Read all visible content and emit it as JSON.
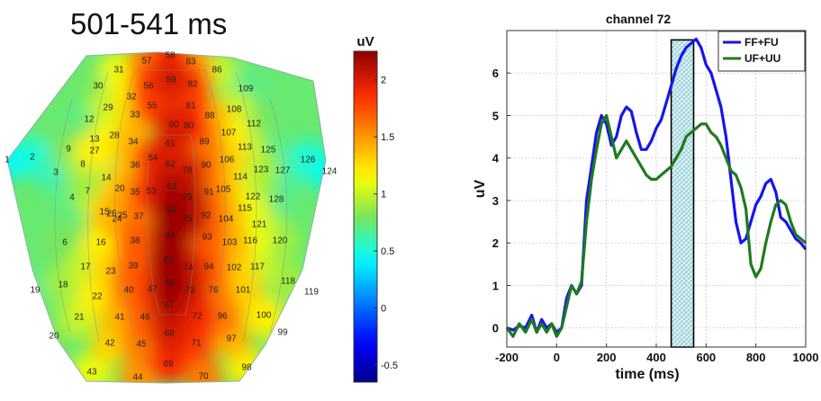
{
  "chart_data": [
    {
      "type": "heatmap",
      "title": "501-541 ms",
      "colorbar": {
        "label": "uV",
        "range": [
          -0.65,
          2.25
        ],
        "ticks": [
          "2",
          "1.5",
          "1",
          "0.5",
          "0",
          "-0.5"
        ],
        "tick_values": [
          2,
          1.5,
          1,
          0.5,
          0,
          -0.5
        ]
      },
      "electrodes": [
        {
          "label": "57",
          "value": 1.6
        },
        {
          "label": "58",
          "value": 1.9
        },
        {
          "label": "83",
          "value": 1.5
        },
        {
          "label": "31",
          "value": 1.1
        },
        {
          "label": "86",
          "value": 1.0
        },
        {
          "label": "30",
          "value": 0.8
        },
        {
          "label": "56",
          "value": 1.8
        },
        {
          "label": "59",
          "value": 2.0
        },
        {
          "label": "82",
          "value": 1.8
        },
        {
          "label": "109",
          "value": 0.7
        },
        {
          "label": "32",
          "value": 1.2
        },
        {
          "label": "12",
          "value": 0.7
        },
        {
          "label": "29",
          "value": 1.0
        },
        {
          "label": "55",
          "value": 1.8
        },
        {
          "label": "81",
          "value": 1.8
        },
        {
          "label": "108",
          "value": 1.0
        },
        {
          "label": "33",
          "value": 1.3
        },
        {
          "label": "112",
          "value": 0.8
        },
        {
          "label": "13",
          "value": 0.8
        },
        {
          "label": "28",
          "value": 1.1
        },
        {
          "label": "60",
          "value": 2.0
        },
        {
          "label": "80",
          "value": 1.9
        },
        {
          "label": "88",
          "value": 1.4
        },
        {
          "label": "34",
          "value": 1.4
        },
        {
          "label": "61",
          "value": 2.0
        },
        {
          "label": "107",
          "value": 1.2
        },
        {
          "label": "113",
          "value": 1.0
        },
        {
          "label": "125",
          "value": 0.7
        },
        {
          "label": "9",
          "value": 0.8
        },
        {
          "label": "27",
          "value": 1.2
        },
        {
          "label": "54",
          "value": 1.9
        },
        {
          "label": "89",
          "value": 1.6
        },
        {
          "label": "106",
          "value": 1.3
        },
        {
          "label": "8",
          "value": 0.9
        },
        {
          "label": "36",
          "value": 1.4
        },
        {
          "label": "62",
          "value": 2.0
        },
        {
          "label": "78",
          "value": 2.0
        },
        {
          "label": "90",
          "value": 1.6
        },
        {
          "label": "123",
          "value": 0.9
        },
        {
          "label": "127",
          "value": 0.6
        },
        {
          "label": "126",
          "value": 0.5
        },
        {
          "label": "1",
          "value": 0.4
        },
        {
          "label": "2",
          "value": 0.5
        },
        {
          "label": "124",
          "value": 0.4
        },
        {
          "label": "3",
          "value": 0.6
        },
        {
          "label": "14",
          "value": 0.9
        },
        {
          "label": "20",
          "value": 1.3
        },
        {
          "label": "35",
          "value": 1.5
        },
        {
          "label": "63",
          "value": 2.1
        },
        {
          "label": "114",
          "value": 1.0
        },
        {
          "label": "7",
          "value": 0.9
        },
        {
          "label": "26",
          "value": 1.4
        },
        {
          "label": "53",
          "value": 1.9
        },
        {
          "label": "79",
          "value": 2.1
        },
        {
          "label": "91",
          "value": 1.6
        },
        {
          "label": "105",
          "value": 1.3
        },
        {
          "label": "4",
          "value": 0.7
        },
        {
          "label": "122",
          "value": 0.9
        },
        {
          "label": "128",
          "value": 0.7
        },
        {
          "label": "115",
          "value": 1.1
        },
        {
          "label": "15",
          "value": 1.1
        },
        {
          "label": "25",
          "value": 1.3
        },
        {
          "label": "37",
          "value": 1.6
        },
        {
          "label": "69",
          "value": 2.2
        },
        {
          "label": "75",
          "value": 2.1
        },
        {
          "label": "92",
          "value": 1.7
        },
        {
          "label": "104",
          "value": 1.4
        },
        {
          "label": "121",
          "value": 1.0
        },
        {
          "label": "24",
          "value": 1.4
        },
        {
          "label": "6",
          "value": 0.8
        },
        {
          "label": "16",
          "value": 1.2
        },
        {
          "label": "38",
          "value": 1.7
        },
        {
          "label": "64",
          "value": 2.2
        },
        {
          "label": "93",
          "value": 1.7
        },
        {
          "label": "103",
          "value": 1.4
        },
        {
          "label": "116",
          "value": 1.1
        },
        {
          "label": "120",
          "value": 0.9
        },
        {
          "label": "17",
          "value": 1.0
        },
        {
          "label": "23",
          "value": 1.3
        },
        {
          "label": "39",
          "value": 1.7
        },
        {
          "label": "65",
          "value": 2.2
        },
        {
          "label": "74",
          "value": 2.0
        },
        {
          "label": "94",
          "value": 1.7
        },
        {
          "label": "102",
          "value": 1.3
        },
        {
          "label": "117",
          "value": 1.0
        },
        {
          "label": "19",
          "value": 0.7
        },
        {
          "label": "18",
          "value": 0.9
        },
        {
          "label": "22",
          "value": 1.2
        },
        {
          "label": "40",
          "value": 1.6
        },
        {
          "label": "47",
          "value": 1.8
        },
        {
          "label": "66",
          "value": 2.2
        },
        {
          "label": "73",
          "value": 2.0
        },
        {
          "label": "76",
          "value": 1.6
        },
        {
          "label": "101",
          "value": 1.3
        },
        {
          "label": "118",
          "value": 0.9
        },
        {
          "label": "119",
          "value": 0.7
        },
        {
          "label": "21",
          "value": 1.0
        },
        {
          "label": "41",
          "value": 1.4
        },
        {
          "label": "46",
          "value": 1.7
        },
        {
          "label": "67",
          "value": 2.1
        },
        {
          "label": "72",
          "value": 1.9
        },
        {
          "label": "96",
          "value": 1.6
        },
        {
          "label": "100",
          "value": 1.2
        },
        {
          "label": "99",
          "value": 1.0
        },
        {
          "label": "68",
          "value": 2.0
        },
        {
          "label": "20",
          "value": 0.8
        },
        {
          "label": "42",
          "value": 1.3
        },
        {
          "label": "45",
          "value": 1.6
        },
        {
          "label": "71",
          "value": 1.8
        },
        {
          "label": "97",
          "value": 1.4
        },
        {
          "label": "69",
          "value": 1.9
        },
        {
          "label": "43",
          "value": 1.1
        },
        {
          "label": "44",
          "value": 1.5
        },
        {
          "label": "70",
          "value": 1.6
        },
        {
          "label": "98",
          "value": 1.2
        }
      ]
    },
    {
      "type": "line",
      "title": "channel 72",
      "xlabel": "time (ms)",
      "ylabel": "uV",
      "xlim": [
        -200,
        1000
      ],
      "ylim": [
        -0.45,
        7.0
      ],
      "xticks": [
        -200,
        0,
        200,
        400,
        600,
        800,
        1000
      ],
      "yticks": [
        0,
        1,
        2,
        3,
        4,
        5,
        6
      ],
      "grid": true,
      "legend": "top-right",
      "highlight_window": [
        460,
        550
      ],
      "series": [
        {
          "name": "FF+FU",
          "color": "#1515ee",
          "x": [
            -200,
            -175,
            -150,
            -125,
            -100,
            -80,
            -60,
            -40,
            -20,
            0,
            20,
            40,
            60,
            80,
            100,
            120,
            140,
            160,
            180,
            200,
            220,
            240,
            260,
            280,
            300,
            320,
            340,
            360,
            380,
            400,
            420,
            440,
            460,
            480,
            500,
            520,
            540,
            560,
            580,
            600,
            620,
            640,
            660,
            680,
            700,
            720,
            740,
            760,
            780,
            800,
            820,
            840,
            860,
            880,
            900,
            920,
            940,
            960,
            980,
            1000
          ],
          "values": [
            0.0,
            -0.05,
            0.05,
            0.0,
            0.3,
            -0.1,
            0.2,
            0.0,
            0.1,
            -0.1,
            0.0,
            0.7,
            1.0,
            0.8,
            1.0,
            3.0,
            3.8,
            4.6,
            5.0,
            4.8,
            4.3,
            4.5,
            5.0,
            5.2,
            5.1,
            4.6,
            4.2,
            4.2,
            4.4,
            4.7,
            4.9,
            5.3,
            5.7,
            6.1,
            6.4,
            6.6,
            6.7,
            6.8,
            6.6,
            6.2,
            6.0,
            5.6,
            5.2,
            4.5,
            3.5,
            2.5,
            2.0,
            2.1,
            2.5,
            2.9,
            3.1,
            3.4,
            3.5,
            3.2,
            2.6,
            2.5,
            2.3,
            2.1,
            2.0,
            1.85
          ]
        },
        {
          "name": "UF+UU",
          "color": "#1f7a1f",
          "x": [
            -200,
            -175,
            -150,
            -125,
            -100,
            -80,
            -60,
            -40,
            -20,
            0,
            20,
            40,
            60,
            80,
            100,
            120,
            140,
            160,
            180,
            200,
            220,
            240,
            260,
            280,
            300,
            320,
            340,
            360,
            380,
            400,
            420,
            440,
            460,
            480,
            500,
            520,
            540,
            560,
            580,
            600,
            620,
            640,
            660,
            680,
            700,
            720,
            740,
            760,
            780,
            800,
            820,
            840,
            860,
            880,
            900,
            920,
            940,
            960,
            980,
            1000
          ],
          "values": [
            0.0,
            -0.2,
            0.1,
            -0.1,
            0.2,
            -0.1,
            0.1,
            -0.1,
            0.1,
            -0.2,
            0.0,
            0.5,
            1.0,
            0.8,
            1.1,
            2.5,
            3.5,
            4.2,
            4.8,
            5.0,
            4.5,
            4.0,
            4.2,
            4.4,
            4.2,
            4.0,
            3.8,
            3.6,
            3.5,
            3.5,
            3.6,
            3.7,
            3.8,
            4.0,
            4.2,
            4.5,
            4.6,
            4.7,
            4.8,
            4.8,
            4.6,
            4.5,
            4.3,
            4.0,
            3.7,
            3.6,
            3.3,
            2.8,
            1.5,
            1.2,
            1.4,
            2.0,
            2.5,
            2.9,
            3.0,
            2.9,
            2.5,
            2.2,
            2.1,
            2.0
          ]
        }
      ]
    }
  ]
}
